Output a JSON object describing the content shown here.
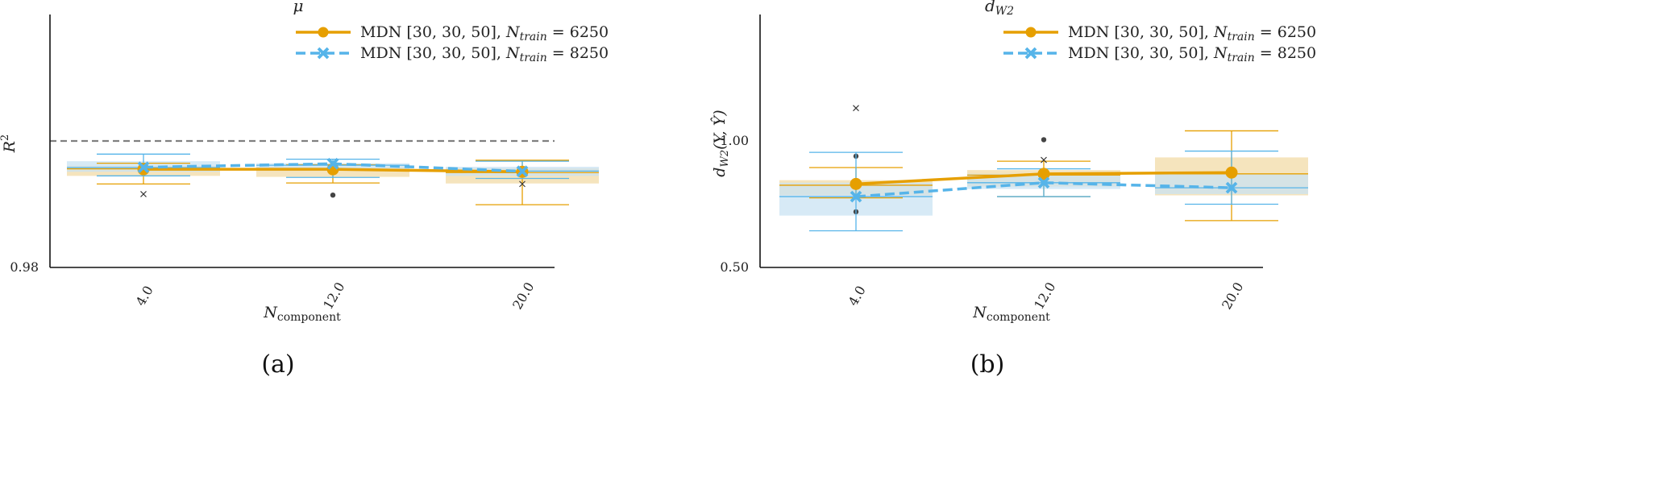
{
  "colors": {
    "series1": "#e69f00",
    "series2": "#56b4e9",
    "box1_fill": "#f3dfb1",
    "box2_fill": "#c9e3f3",
    "outlier_dot": "#444444",
    "reference_line": "#808080"
  },
  "chart_data": [
    {
      "type": "line",
      "caption": "(a)",
      "title": "μ",
      "xlabel": "N_component",
      "xlabel_main": "N",
      "xlabel_sub": "component",
      "ylabel": "R²",
      "ylabel_main": "R",
      "ylabel_sup": "2",
      "categories": [
        "4.0",
        "12.0",
        "20.0"
      ],
      "ylim": [
        0.98,
        0.99
      ],
      "yticks": [
        {
          "value": 0.98,
          "label": "0.98"
        }
      ],
      "reference_line": 0.985,
      "legend_position": "top-right",
      "grid": false,
      "series": [
        {
          "name": "MDN [30, 30, 50], N_train = 6250",
          "legend_prefix": "MDN [30, 30, 50], ",
          "legend_var": "N",
          "legend_sub": "train",
          "legend_suffix": " = 6250",
          "style": "solid",
          "marker": "circle",
          "means": [
            0.98388,
            0.98388,
            0.98378
          ],
          "boxes": [
            {
              "q1": 0.98362,
              "q3": 0.98402,
              "median": 0.9839,
              "whislo": 0.9833,
              "whishi": 0.98412,
              "fliers": [
                {
                  "y": 0.9829,
                  "marker": "x"
                }
              ]
            },
            {
              "q1": 0.98358,
              "q3": 0.98398,
              "median": 0.98386,
              "whislo": 0.98334,
              "whishi": 0.98406,
              "fliers": [
                {
                  "y": 0.98286,
                  "marker": "dot"
                }
              ]
            },
            {
              "q1": 0.98332,
              "q3": 0.98392,
              "median": 0.98375,
              "whislo": 0.98248,
              "whishi": 0.98424,
              "fliers": [
                {
                  "y": 0.9833,
                  "marker": "x"
                }
              ]
            }
          ]
        },
        {
          "name": "MDN [30, 30, 50], N_train = 8250",
          "legend_prefix": "MDN [30, 30, 50], ",
          "legend_var": "N",
          "legend_sub": "train",
          "legend_suffix": " = 8250",
          "style": "dashed",
          "marker": "x",
          "means": [
            0.98396,
            0.9841,
            0.9838
          ],
          "boxes": [
            {
              "q1": 0.98378,
              "q3": 0.9842,
              "median": 0.98395,
              "whislo": 0.98362,
              "whishi": 0.98448,
              "fliers": []
            },
            {
              "q1": 0.98382,
              "q3": 0.98412,
              "median": 0.98404,
              "whislo": 0.98356,
              "whishi": 0.98428,
              "fliers": []
            },
            {
              "q1": 0.98362,
              "q3": 0.98398,
              "median": 0.98381,
              "whislo": 0.98352,
              "whishi": 0.9842,
              "fliers": []
            }
          ]
        }
      ]
    },
    {
      "type": "line",
      "caption": "(b)",
      "title": "d_W2",
      "title_main": "d",
      "title_sub": "W2",
      "xlabel": "N_component",
      "xlabel_main": "N",
      "xlabel_sub": "component",
      "ylabel": "d_W2(Y, Ŷ)",
      "ylabel_main": "d",
      "ylabel_sub": "W2",
      "ylabel_rest": "(Y, Ŷ)",
      "categories": [
        "4.0",
        "12.0",
        "20.0"
      ],
      "ylim": [
        0.5,
        1.5
      ],
      "yticks": [
        {
          "value": 0.5,
          "label": "0.50"
        },
        {
          "value": 1.0,
          "label": "1.00"
        }
      ],
      "legend_position": "top-right",
      "grid": false,
      "series": [
        {
          "name": "MDN [30, 30, 50], N_train = 6250",
          "legend_prefix": "MDN [30, 30, 50], ",
          "legend_var": "N",
          "legend_sub": "train",
          "legend_suffix": " = 6250",
          "style": "solid",
          "marker": "circle",
          "means": [
            0.83,
            0.87,
            0.875
          ],
          "boxes": [
            {
              "q1": 0.785,
              "q3": 0.845,
              "median": 0.825,
              "whislo": 0.775,
              "whishi": 0.895,
              "fliers": [
                {
                  "y": 1.13,
                  "marker": "x"
                },
                {
                  "y": 0.94,
                  "marker": "dot"
                },
                {
                  "y": 0.72,
                  "marker": "dot"
                }
              ]
            },
            {
              "q1": 0.82,
              "q3": 0.885,
              "median": 0.865,
              "whislo": 0.78,
              "whishi": 0.92,
              "fliers": [
                {
                  "y": 1.005,
                  "marker": "dot"
                },
                {
                  "y": 0.925,
                  "marker": "x"
                }
              ]
            },
            {
              "q1": 0.785,
              "q3": 0.935,
              "median": 0.87,
              "whislo": 0.685,
              "whishi": 1.04,
              "fliers": []
            }
          ]
        },
        {
          "name": "MDN [30, 30, 50], N_train = 8250",
          "legend_prefix": "MDN [30, 30, 50], ",
          "legend_var": "N",
          "legend_sub": "train",
          "legend_suffix": " = 8250",
          "style": "dashed",
          "marker": "x",
          "means": [
            0.78,
            0.835,
            0.815
          ],
          "boxes": [
            {
              "q1": 0.705,
              "q3": 0.835,
              "median": 0.78,
              "whislo": 0.645,
              "whishi": 0.955,
              "fliers": []
            },
            {
              "q1": 0.81,
              "q3": 0.87,
              "median": 0.835,
              "whislo": 0.78,
              "whishi": 0.89,
              "fliers": []
            },
            {
              "q1": 0.79,
              "q3": 0.87,
              "median": 0.815,
              "whislo": 0.75,
              "whishi": 0.96,
              "fliers": []
            }
          ]
        }
      ]
    }
  ]
}
